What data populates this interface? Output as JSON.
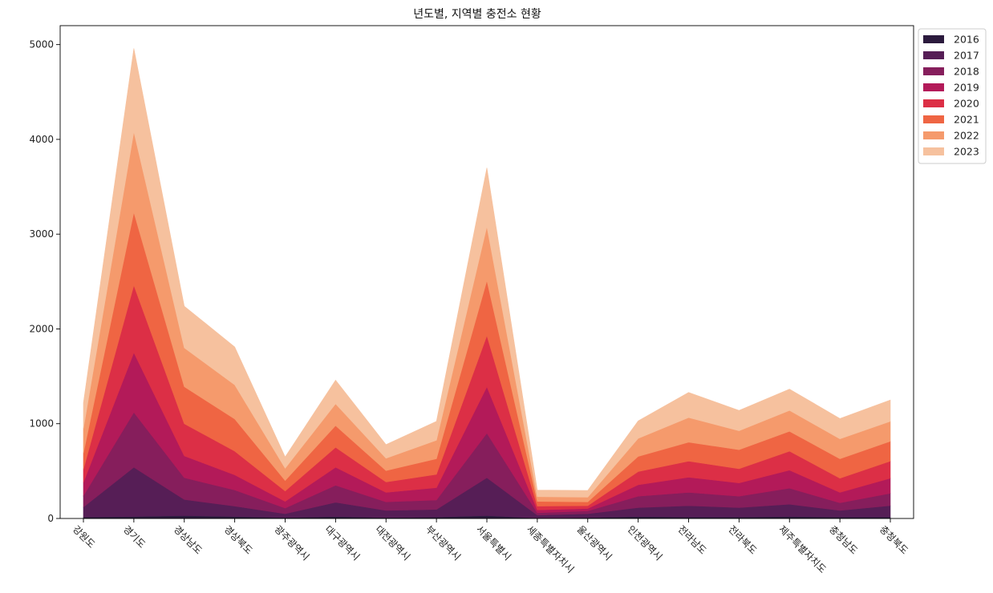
{
  "chart_data": {
    "type": "area",
    "stacked": true,
    "title": "년도별, 지역별 충전소 현황",
    "xlabel": "",
    "ylabel": "",
    "categories": [
      "강원도",
      "경기도",
      "경상남도",
      "경상북도",
      "광주광역시",
      "대구광역시",
      "대전광역시",
      "부산광역시",
      "서울특별시",
      "세종특별자치시",
      "울산광역시",
      "인천광역시",
      "전라남도",
      "전라북도",
      "제주특별자치도",
      "충청남도",
      "충청북도"
    ],
    "ylim": [
      0,
      5200
    ],
    "yticks": [
      0,
      1000,
      2000,
      3000,
      4000,
      5000
    ],
    "grid": false,
    "legend_position": "outside-top-right",
    "series": [
      {
        "name": "2016",
        "color": "#2b1a3d",
        "values": [
          15,
          20,
          30,
          20,
          10,
          20,
          10,
          15,
          30,
          5,
          10,
          20,
          15,
          15,
          20,
          15,
          15
        ]
      },
      {
        "name": "2017",
        "color": "#561e56",
        "values": [
          105,
          520,
          170,
          110,
          40,
          150,
          75,
          80,
          400,
          30,
          40,
          95,
          120,
          100,
          130,
          70,
          120
        ]
      },
      {
        "name": "2018",
        "color": "#861e5c",
        "values": [
          120,
          580,
          230,
          170,
          60,
          180,
          90,
          100,
          470,
          25,
          30,
          120,
          140,
          120,
          170,
          80,
          130
        ]
      },
      {
        "name": "2019",
        "color": "#b31a59",
        "values": [
          140,
          630,
          230,
          160,
          70,
          190,
          100,
          130,
          490,
          30,
          25,
          120,
          160,
          140,
          190,
          110,
          160
        ]
      },
      {
        "name": "2020",
        "color": "#dc2f46",
        "values": [
          140,
          710,
          340,
          250,
          110,
          210,
          110,
          140,
          540,
          40,
          30,
          140,
          170,
          150,
          200,
          150,
          180
        ]
      },
      {
        "name": "2021",
        "color": "#ef6543",
        "values": [
          170,
          770,
          390,
          340,
          110,
          230,
          120,
          165,
          580,
          50,
          40,
          160,
          200,
          200,
          210,
          205,
          210
        ]
      },
      {
        "name": "2022",
        "color": "#f59a6c",
        "values": [
          260,
          850,
          410,
          360,
          130,
          230,
          130,
          195,
          570,
          50,
          50,
          190,
          260,
          200,
          220,
          210,
          210
        ]
      },
      {
        "name": "2023",
        "color": "#f6c19e",
        "values": [
          270,
          880,
          440,
          400,
          120,
          250,
          145,
          200,
          620,
          70,
          70,
          185,
          265,
          215,
          225,
          215,
          225
        ]
      }
    ]
  }
}
